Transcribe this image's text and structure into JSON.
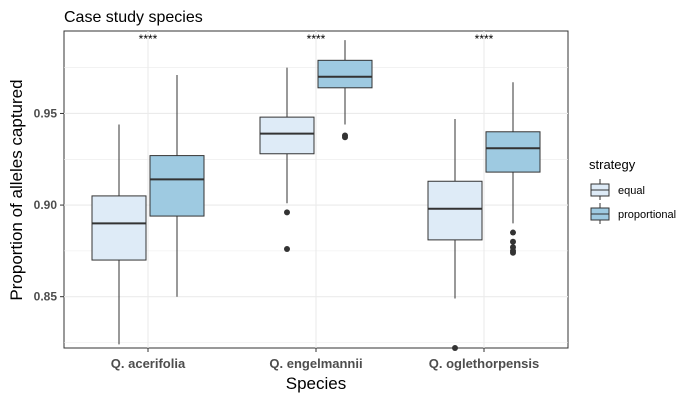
{
  "chart_data": {
    "type": "boxplot",
    "title": "Case study species",
    "xlabel": "Species",
    "ylabel": "Proportion of alleles captured",
    "ylim": [
      0.822,
      0.995
    ],
    "yticks": [
      0.85,
      0.9,
      0.95
    ],
    "ytick_labels": [
      "0.85",
      "0.90",
      "0.95"
    ],
    "categories": [
      "Q. acerifolia",
      "Q. engelmannii",
      "Q. oglethorpensis"
    ],
    "significance": [
      "****",
      "****",
      "****"
    ],
    "grid": true,
    "legend": {
      "title": "strategy",
      "position": "right"
    },
    "series": [
      {
        "name": "equal",
        "color": "#deebf7",
        "boxes": [
          {
            "whisker_low": 0.824,
            "q1": 0.87,
            "median": 0.89,
            "q3": 0.905,
            "whisker_high": 0.944,
            "outliers": []
          },
          {
            "whisker_low": 0.901,
            "q1": 0.928,
            "median": 0.939,
            "q3": 0.948,
            "whisker_high": 0.975,
            "outliers": [
              0.896,
              0.876
            ]
          },
          {
            "whisker_low": 0.849,
            "q1": 0.881,
            "median": 0.898,
            "q3": 0.913,
            "whisker_high": 0.947,
            "outliers": [
              0.822
            ]
          }
        ]
      },
      {
        "name": "proportional",
        "color": "#9ecae1",
        "boxes": [
          {
            "whisker_low": 0.85,
            "q1": 0.894,
            "median": 0.914,
            "q3": 0.927,
            "whisker_high": 0.971,
            "outliers": []
          },
          {
            "whisker_low": 0.944,
            "q1": 0.964,
            "median": 0.97,
            "q3": 0.979,
            "whisker_high": 0.99,
            "outliers": [
              0.938,
              0.937
            ]
          },
          {
            "whisker_low": 0.89,
            "q1": 0.918,
            "median": 0.931,
            "q3": 0.94,
            "whisker_high": 0.967,
            "outliers": [
              0.885,
              0.88,
              0.877,
              0.875,
              0.874
            ]
          }
        ]
      }
    ]
  }
}
